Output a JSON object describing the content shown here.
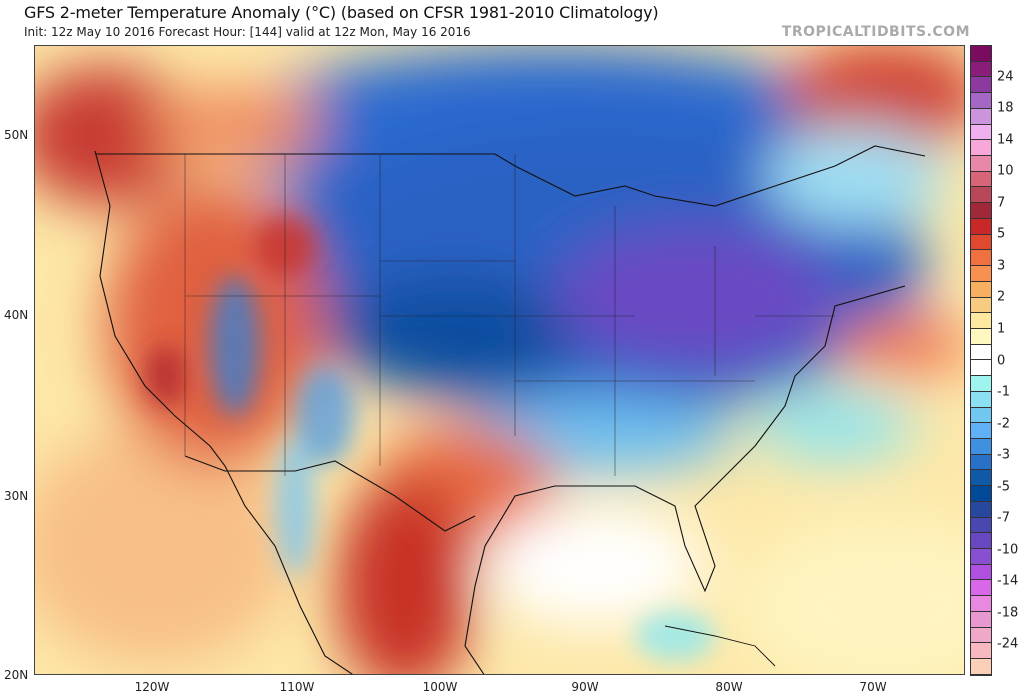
{
  "header": {
    "title": "GFS 2-meter Temperature Anomaly (°C) (based on CFSR 1981-2010 Climatology)",
    "subtitle": "Init: 12z May 10 2016   Forecast Hour: [144]   valid at 12z Mon, May 16 2016",
    "watermark": "TROPICALTIDBITS.COM"
  },
  "axes": {
    "lat_labels": [
      "50N",
      "40N",
      "30N",
      "20N"
    ],
    "lon_labels": [
      "120W",
      "110W",
      "100W",
      "90W",
      "80W",
      "70W"
    ]
  },
  "colorbar": {
    "labels": [
      "24",
      "18",
      "14",
      "10",
      "7",
      "5",
      "3",
      "2",
      "1",
      "0",
      "-1",
      "-2",
      "-3",
      "-5",
      "-7",
      "-10",
      "-14",
      "-18",
      "-24"
    ],
    "colors": [
      "#7b0b5e",
      "#8a1c7a",
      "#8c3aa0",
      "#a468c4",
      "#cc94dc",
      "#f0b0f0",
      "#f8a8d8",
      "#e888a8",
      "#d86478",
      "#b84858",
      "#a02838",
      "#c82828",
      "#e04830",
      "#f07040",
      "#f89050",
      "#f8b060",
      "#f8cc80",
      "#fde8a0",
      "#fef8c0",
      "#ffffff",
      "#ffffff",
      "#a0f4f0",
      "#8ce0f4",
      "#70c8f0",
      "#60b0f8",
      "#4090e0",
      "#2870c8",
      "#1058a8",
      "#004898",
      "#2848a0",
      "#4848b0",
      "#6848c0",
      "#8850d0",
      "#b050e0",
      "#d868e8",
      "#e888e0",
      "#e898d0",
      "#f0a8c8",
      "#f8b8c0",
      "#fcd0b8"
    ]
  }
}
